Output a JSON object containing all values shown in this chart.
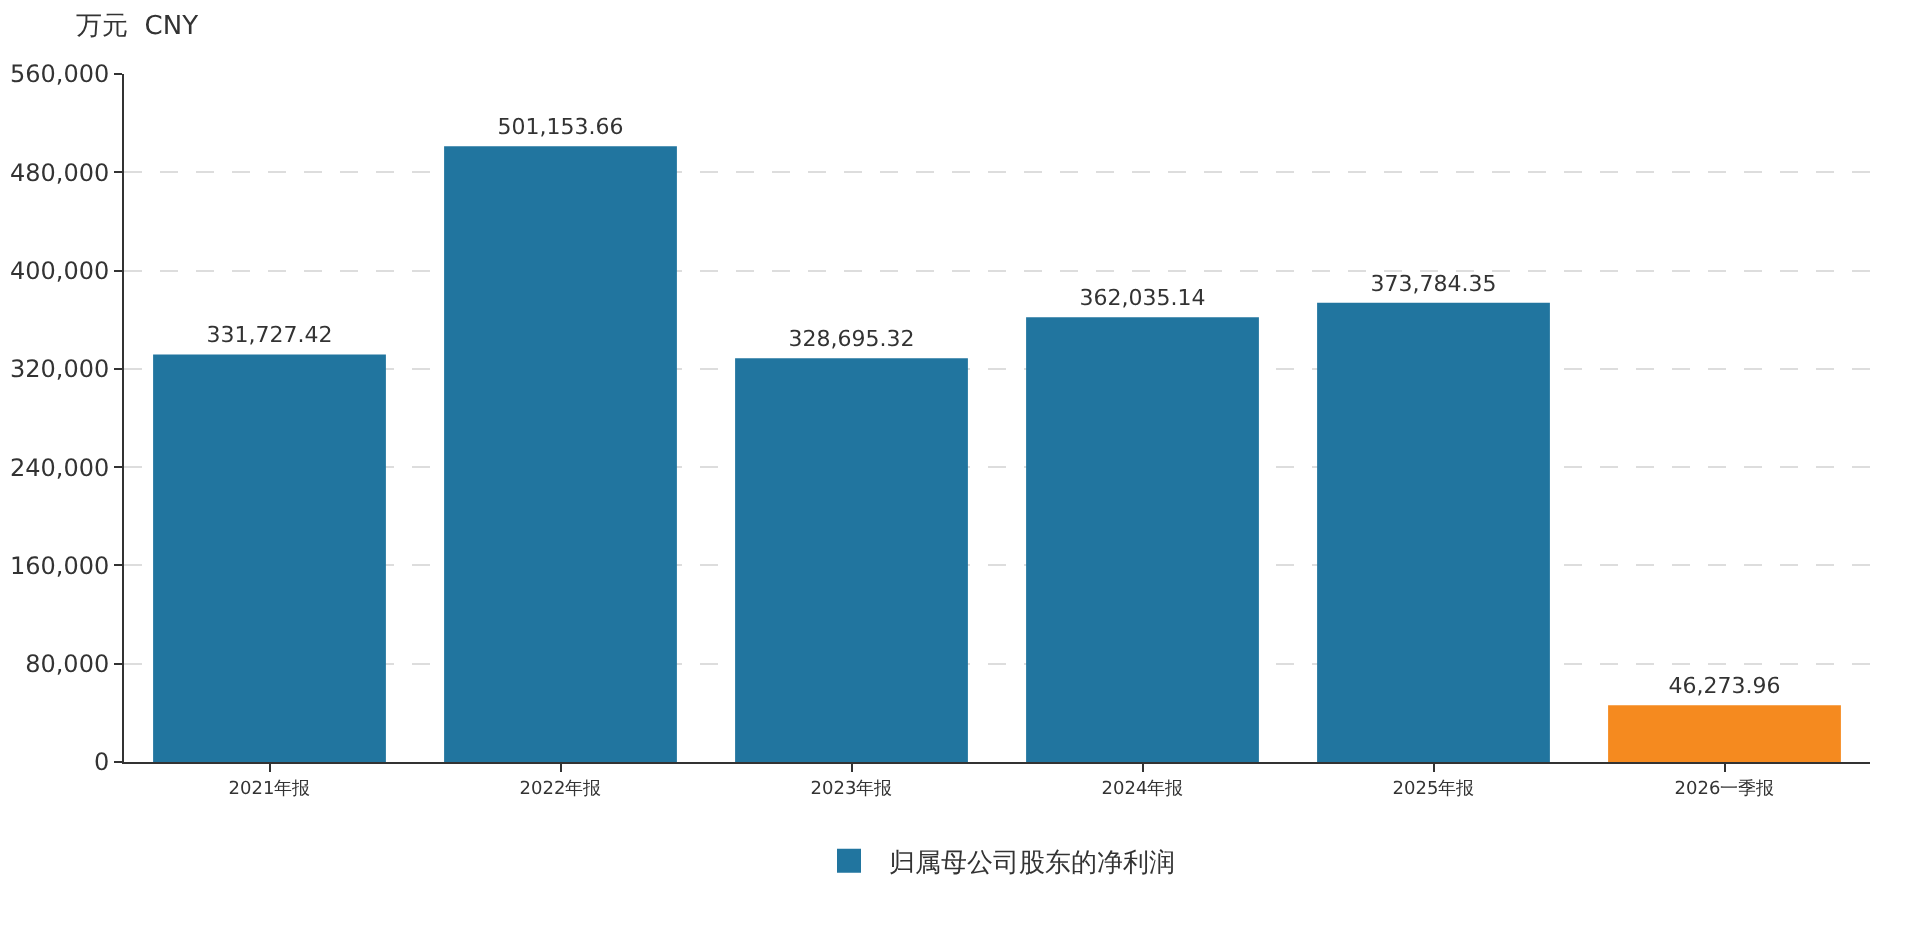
{
  "chart_data": {
    "type": "bar",
    "ylabel": "万元  CNY",
    "categories": [
      "2021年报",
      "2022年报",
      "2023年报",
      "2024年报",
      "2025年报",
      "2026一季报"
    ],
    "series": [
      {
        "name": "归属母公司股东的净利润",
        "color": "#21759f",
        "colors": [
          "#21759f",
          "#21759f",
          "#21759f",
          "#21759f",
          "#21759f",
          "#f58a1f"
        ],
        "values": [
          331727.42,
          501153.66,
          328695.32,
          362035.14,
          373784.35,
          46273.96
        ],
        "value_labels": [
          "331,727.42",
          "501,153.66",
          "328,695.32",
          "362,035.14",
          "373,784.35",
          "46,273.96"
        ]
      }
    ],
    "ylim": [
      0,
      560000
    ],
    "yticks": [
      0,
      {
        "value": 80000,
        "label": "80,000"
      },
      {
        "value": 160000,
        "label": "160,000"
      },
      {
        "value": 240000,
        "label": "240,000"
      },
      {
        "value": 320000,
        "label": "320,000"
      },
      {
        "value": 400000,
        "label": "400,000"
      },
      {
        "value": 480000,
        "label": "480,000"
      },
      {
        "value": 560000,
        "label": "560,000"
      }
    ],
    "grid": "y",
    "legend": "bottom"
  }
}
